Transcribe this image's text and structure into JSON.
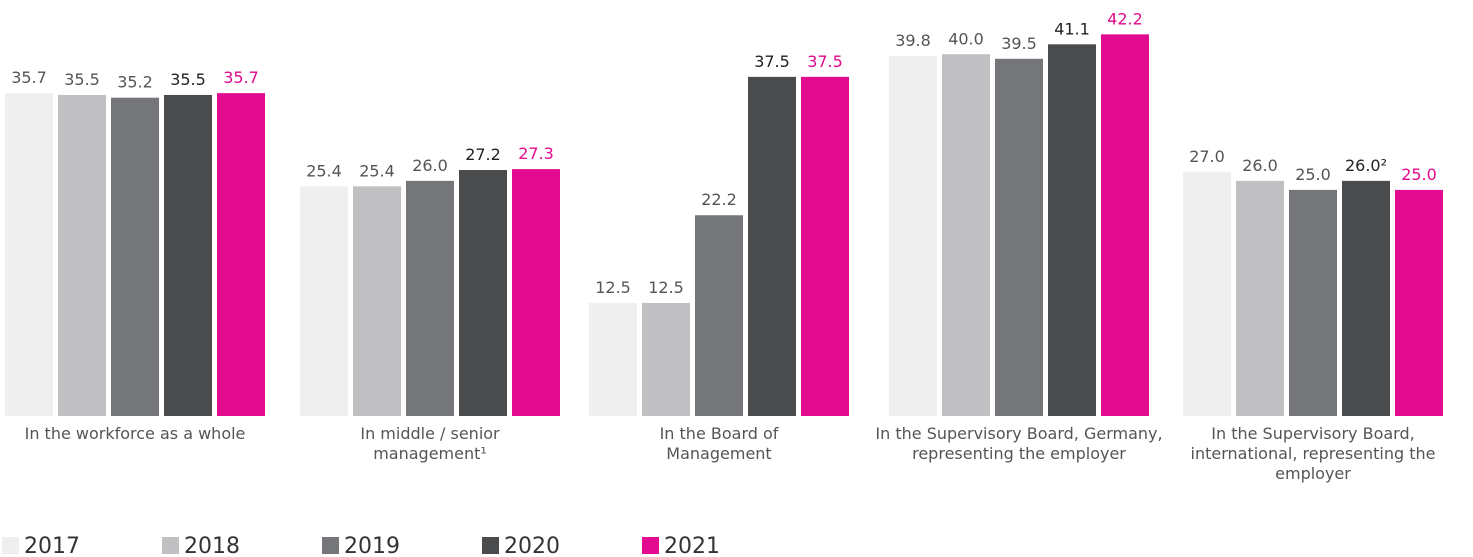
{
  "chart_data": {
    "type": "bar",
    "categories": [
      "In the workforce as a whole",
      "In middle / senior management¹",
      "In the Board of Management",
      "In the Supervisory Board, Germany, representing the employer",
      "In the Supervisory Board, international, representing the employer"
    ],
    "series": [
      {
        "name": "2017",
        "color": "#efefef",
        "values": [
          35.7,
          25.4,
          12.5,
          39.8,
          27.0
        ],
        "value_labels": [
          "35.7",
          "25.4",
          "12.5",
          "39.8",
          "27.0"
        ]
      },
      {
        "name": "2018",
        "color": "#c0c0c2",
        "values": [
          35.5,
          25.4,
          12.5,
          40.0,
          26.0
        ],
        "value_labels": [
          "35.5",
          "25.4",
          "12.5",
          "40.0",
          "26.0"
        ]
      },
      {
        "name": "2019",
        "color": "#75767a",
        "values": [
          35.2,
          26.0,
          22.2,
          39.5,
          25.0
        ],
        "value_labels": [
          "35.2",
          "26.0",
          "22.2",
          "39.5",
          "25.0"
        ]
      },
      {
        "name": "2020",
        "color": "#4a4b4d",
        "values": [
          35.5,
          27.2,
          37.5,
          41.1,
          26.0
        ],
        "value_labels": [
          "35.5",
          "27.2",
          "37.5",
          "41.1",
          "26.0²"
        ]
      },
      {
        "name": "2021",
        "color": "#e20a8e",
        "values": [
          35.7,
          27.3,
          37.5,
          42.2,
          25.0
        ],
        "value_labels": [
          "35.7",
          "27.3",
          "37.5",
          "42.2",
          "25.0"
        ]
      }
    ],
    "ylim": [
      0,
      46
    ]
  }
}
